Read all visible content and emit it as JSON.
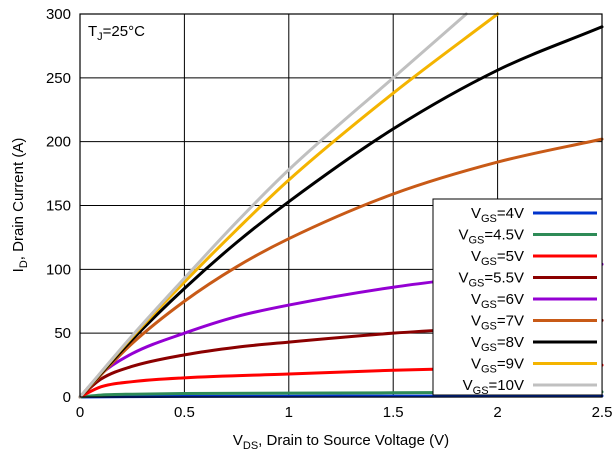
{
  "chart_data": {
    "type": "line",
    "annotation": {
      "main": "T",
      "sub": "J",
      "tail": "=25°C"
    },
    "xlabel": {
      "main": "V",
      "sub": "DS",
      "tail": ", Drain to Source Voltage (V)"
    },
    "ylabel": {
      "main": "I",
      "sub": "D",
      "tail": ", Drain Current (A)"
    },
    "xlim": [
      0,
      2.5
    ],
    "ylim": [
      0,
      300
    ],
    "xticks": [
      0,
      0.5,
      1,
      1.5,
      2,
      2.5
    ],
    "xtick_labels": [
      "0",
      "0.5",
      "1",
      "1.5",
      "2",
      "2.5"
    ],
    "yticks": [
      0,
      50,
      100,
      150,
      200,
      250,
      300
    ],
    "ytick_labels": [
      "0",
      "50",
      "100",
      "150",
      "200",
      "250",
      "300"
    ],
    "grid": true,
    "legend_position": "bottom-right",
    "series": [
      {
        "name": "V_GS=4V",
        "label_main": "V",
        "label_sub": "GS",
        "label_tail": "=4V",
        "color": "#0033cc",
        "x": [
          0,
          0.25,
          0.5,
          1.0,
          1.5,
          2.0,
          2.5
        ],
        "y": [
          0,
          0.3,
          0.5,
          0.6,
          0.7,
          0.8,
          0.9
        ]
      },
      {
        "name": "V_GS=4.5V",
        "label_main": "V",
        "label_sub": "GS",
        "label_tail": "=4.5V",
        "color": "#2e8b57",
        "x": [
          0,
          0.1,
          0.25,
          0.5,
          1.0,
          1.5,
          2.0,
          2.5
        ],
        "y": [
          0,
          1.5,
          2.2,
          2.7,
          3.0,
          3.3,
          3.6,
          4.0
        ]
      },
      {
        "name": "V_GS=5V",
        "label_main": "V",
        "label_sub": "GS",
        "label_tail": "=5V",
        "color": "#ff0000",
        "x": [
          0,
          0.1,
          0.25,
          0.5,
          1.0,
          1.5,
          2.0,
          2.5
        ],
        "y": [
          0,
          8,
          12,
          15,
          18,
          21,
          23,
          25
        ]
      },
      {
        "name": "V_GS=5.5V",
        "label_main": "V",
        "label_sub": "GS",
        "label_tail": "=5.5V",
        "color": "#8b0000",
        "x": [
          0,
          0.1,
          0.25,
          0.5,
          0.75,
          1.0,
          1.5,
          2.0,
          2.5
        ],
        "y": [
          0,
          14,
          24,
          33,
          39,
          43,
          50,
          55,
          60
        ]
      },
      {
        "name": "V_GS=6V",
        "label_main": "V",
        "label_sub": "GS",
        "label_tail": "=6V",
        "color": "#9400d3",
        "x": [
          0,
          0.1,
          0.25,
          0.5,
          0.75,
          1.0,
          1.5,
          2.0,
          2.5
        ],
        "y": [
          0,
          18,
          34,
          50,
          63,
          72,
          86,
          96,
          104
        ]
      },
      {
        "name": "V_GS=7V",
        "label_main": "V",
        "label_sub": "GS",
        "label_tail": "=7V",
        "color": "#c85a17",
        "x": [
          0,
          0.25,
          0.5,
          0.75,
          1.0,
          1.5,
          2.0,
          2.5
        ],
        "y": [
          0,
          42,
          75,
          102,
          124,
          159,
          184,
          202
        ]
      },
      {
        "name": "V_GS=8V",
        "label_main": "V",
        "label_sub": "GS",
        "label_tail": "=8V",
        "color": "#000000",
        "x": [
          0,
          0.25,
          0.5,
          0.75,
          1.0,
          1.5,
          2.0,
          2.5
        ],
        "y": [
          0,
          45,
          85,
          121,
          153,
          210,
          256,
          290
        ]
      },
      {
        "name": "V_GS=9V",
        "label_main": "V",
        "label_sub": "GS",
        "label_tail": "=9V",
        "color": "#f4b400",
        "x": [
          0,
          0.25,
          0.5,
          0.75,
          1.0,
          1.5,
          2.0
        ],
        "y": [
          0,
          47,
          90,
          131,
          170,
          238,
          300
        ]
      },
      {
        "name": "V_GS=10V",
        "label_main": "V",
        "label_sub": "GS",
        "label_tail": "=10V",
        "color": "#c0c0c0",
        "x": [
          0,
          0.25,
          0.5,
          0.75,
          1.0,
          1.5,
          1.85
        ],
        "y": [
          0,
          48,
          93,
          137,
          178,
          250,
          300
        ]
      }
    ]
  }
}
